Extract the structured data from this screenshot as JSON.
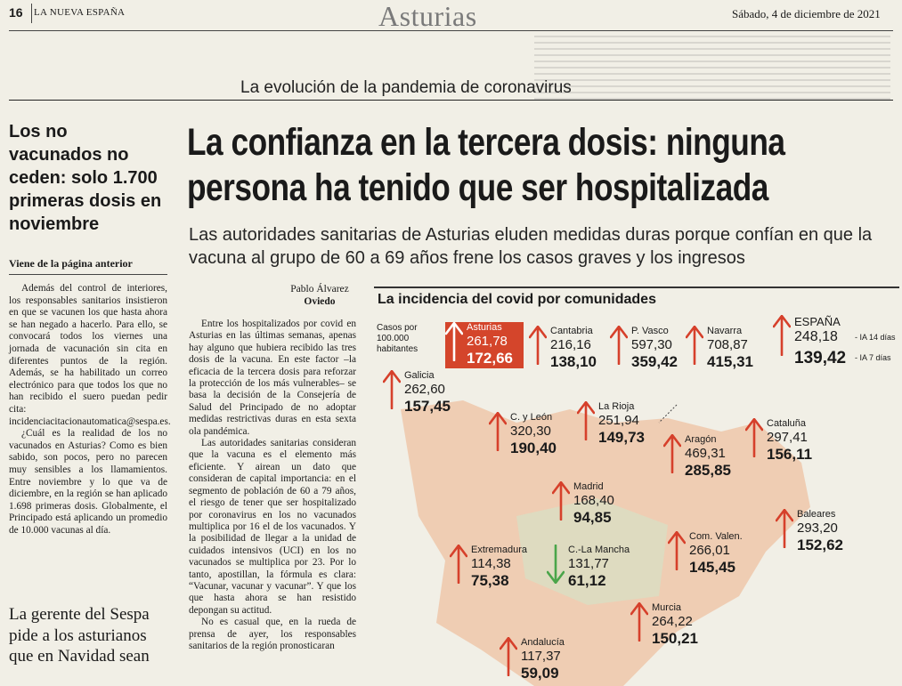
{
  "header": {
    "page_number": "16",
    "publication": "LA NUEVA ESPAÑA",
    "section": "Asturias",
    "date": "Sábado, 4 de diciembre de 2021"
  },
  "kicker": "La evolución de la pandemia de coronavirus",
  "sidebar": {
    "headline": "Los no vacunados no ceden: solo 1.700 primeras dosis en noviembre",
    "continued": "Viene de la página anterior",
    "body": [
      "Además del control de interiores, los responsables sanitarios insistieron en que se vacunen los que hasta ahora se han negado a hacerlo. Para ello, se convocará todos los viernes una jornada de vacunación sin cita en diferentes puntos de la región. Además, se ha habilitado un correo electrónico para que todos los que no han recibido el suero puedan pedir cita: incidenciacitacionautomatica@sespa.es.",
      "¿Cuál es la realidad de los no vacunados en Asturias? Como es bien sabido, son pocos, pero no parecen muy sensibles a los llamamientos. Entre noviembre y lo que va de diciembre, en la región se han aplicado 1.698 primeras dosis. Globalmente, el Principado está aplicando un promedio de 10.000 vacunas al día."
    ],
    "headline2": "La gerente del Sespa pide a los asturianos que en Navidad sean"
  },
  "article": {
    "headline": "La confianza en la tercera dosis: ninguna persona ha tenido que ser hospitalizada",
    "subhead": "Las autoridades sanitarias de Asturias eluden medidas duras porque confían en que la vacuna al grupo de 60 a 69 años frene los casos graves y los ingresos",
    "byline_name": "Pablo Álvarez",
    "byline_place": "Oviedo",
    "body": [
      "Entre los hospitalizados por covid en Asturias en las últimas semanas, apenas hay alguno que hubiera recibido las tres dosis de la vacuna. En este factor –la eficacia de la tercera dosis para reforzar la protección de los más vulnerables– se basa la decisión de la Consejería de Salud del Principado de no adoptar medidas restrictivas duras en esta sexta ola pandémica.",
      "Las autoridades sanitarias consideran que la vacuna es el elemento más eficiente. Y airean un dato que consideran de capital importancia: en el segmento de población de 60 a 79 años, el riesgo de tener que ser hospitalizado por coronavirus en los no vacunados multiplica por 16 el de los vacunados. Y la posibilidad de llegar a la unidad de cuidados intensivos (UCI) en los no vacunados se multiplica por 23. Por lo tanto, apostillan, la fórmula es clara: “Vacunar, vacunar y vacunar”. Y que los que hasta ahora se han resistido depongan su actitud.",
      "No es casual que, en la rueda de prensa de ayer, los responsables sanitarios de la región pronosticaran"
    ]
  },
  "map": {
    "title": "La incidencia del covid por comunidades",
    "units": "Casos por 100.000 habitantes",
    "label_ia14": "IA 14 días",
    "label_ia7": "IA 7 días",
    "colors": {
      "up": "#d6402b",
      "down": "#4aa54a",
      "highlight": "#d4452b",
      "land": "#efc4a6",
      "center": "#d9dfc3"
    },
    "regions": [
      {
        "name": "Asturias",
        "ia14": "261,78",
        "ia7": "172,66",
        "trend": "up",
        "highlight": true
      },
      {
        "name": "Cantabria",
        "ia14": "216,16",
        "ia7": "138,10",
        "trend": "up"
      },
      {
        "name": "P. Vasco",
        "ia14": "597,30",
        "ia7": "359,42",
        "trend": "up"
      },
      {
        "name": "Navarra",
        "ia14": "708,87",
        "ia7": "415,31",
        "trend": "up"
      },
      {
        "name": "ESPAÑA",
        "ia14": "248,18",
        "ia7": "139,42",
        "trend": "up"
      },
      {
        "name": "Galicia",
        "ia14": "262,60",
        "ia7": "157,45",
        "trend": "up"
      },
      {
        "name": "C. y León",
        "ia14": "320,30",
        "ia7": "190,40",
        "trend": "up"
      },
      {
        "name": "La Rioja",
        "ia14": "251,94",
        "ia7": "149,73",
        "trend": "up"
      },
      {
        "name": "Aragón",
        "ia14": "469,31",
        "ia7": "285,85",
        "trend": "up"
      },
      {
        "name": "Cataluña",
        "ia14": "297,41",
        "ia7": "156,11",
        "trend": "up"
      },
      {
        "name": "Madrid",
        "ia14": "168,40",
        "ia7": "94,85",
        "trend": "up"
      },
      {
        "name": "Baleares",
        "ia14": "293,20",
        "ia7": "152,62",
        "trend": "up"
      },
      {
        "name": "Extremadura",
        "ia14": "114,38",
        "ia7": "75,38",
        "trend": "up"
      },
      {
        "name": "C.-La Mancha",
        "ia14": "131,77",
        "ia7": "61,12",
        "trend": "down"
      },
      {
        "name": "Com. Valen.",
        "ia14": "266,01",
        "ia7": "145,45",
        "trend": "up"
      },
      {
        "name": "Murcia",
        "ia14": "264,22",
        "ia7": "150,21",
        "trend": "up"
      },
      {
        "name": "Andalucía",
        "ia14": "117,37",
        "ia7": "59,09",
        "trend": "up"
      }
    ]
  }
}
